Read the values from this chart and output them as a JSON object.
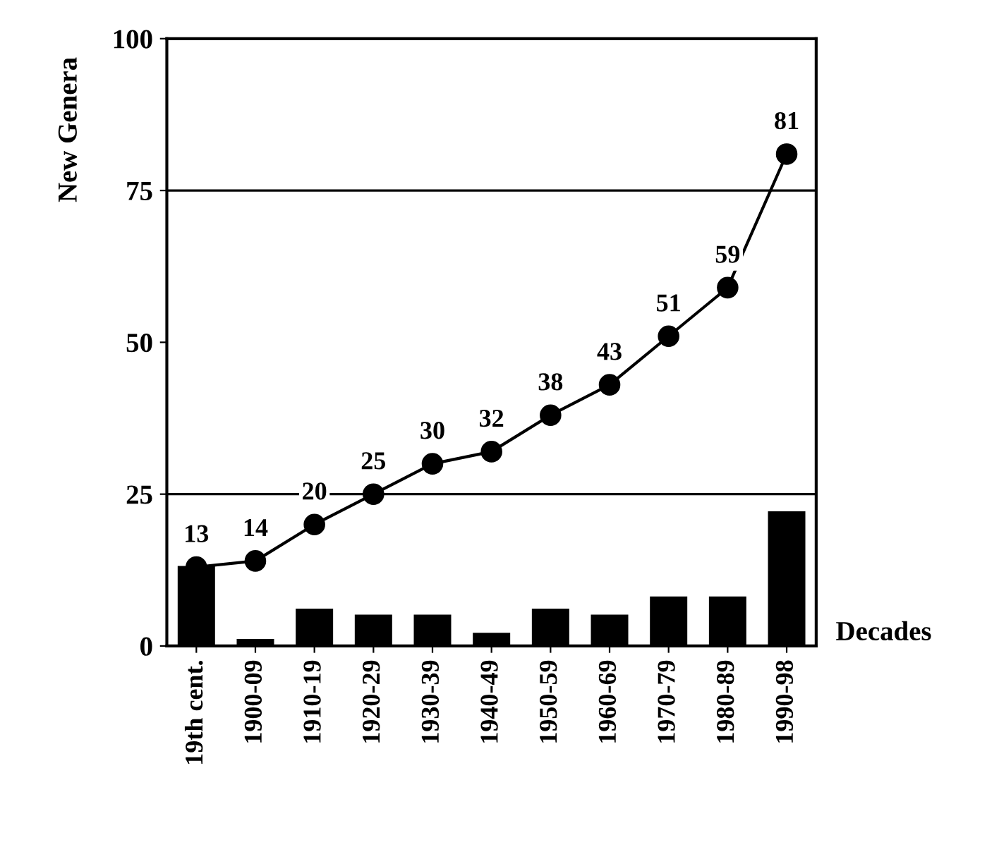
{
  "chart_data": {
    "type": "bar",
    "xlabel": "Decades",
    "ylabel": "New Genera",
    "categories": [
      "19th cent.",
      "1900-09",
      "1910-19",
      "1920-29",
      "1930-39",
      "1940-49",
      "1950-59",
      "1960-69",
      "1970-79",
      "1980-89",
      "1990-98"
    ],
    "series": [
      {
        "color": "#000000",
        "values": [
          13,
          1,
          6,
          5,
          5,
          2,
          6,
          5,
          8,
          8,
          22
        ]
      },
      {
        "type": "line",
        "color": "#000000",
        "marker": "circle",
        "line_style": "solid",
        "data_labels": true,
        "values": [
          13,
          14,
          20,
          25,
          30,
          32,
          38,
          43,
          51,
          59,
          81
        ]
      }
    ],
    "ylim": [
      0,
      100
    ],
    "yticks": [
      0,
      25,
      50,
      75,
      100
    ],
    "grid": false,
    "legend": false,
    "ref_lines": [
      {
        "axis": "y",
        "value": 25,
        "color": "#000000",
        "line_style": "solid"
      },
      {
        "axis": "y",
        "value": 75,
        "color": "#000000",
        "line_style": "solid"
      }
    ]
  }
}
